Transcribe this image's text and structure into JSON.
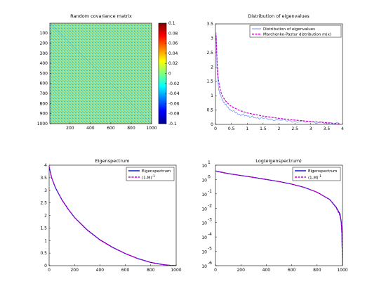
{
  "figure": {
    "background": "#ffffff"
  },
  "chart_data": [
    {
      "type": "heatmap",
      "title": "Random covariance matrix",
      "xlabel": "",
      "ylabel": "",
      "rows": 1000,
      "cols": 1000,
      "xlim": [
        1,
        1000
      ],
      "ylim": [
        1,
        1000
      ],
      "x_ticks": [
        "200",
        "400",
        "600",
        "800",
        "1000"
      ],
      "y_ticks": [
        "100",
        "200",
        "300",
        "400",
        "500",
        "600",
        "700",
        "800",
        "900",
        "1000"
      ],
      "colorbar": {
        "range": [
          -0.1,
          0.1
        ],
        "ticks": [
          "0.1",
          "0.08",
          "0.06",
          "0.04",
          "0.02",
          "0",
          "-0.02",
          "-0.04",
          "-0.06",
          "-0.08",
          "-0.1"
        ]
      }
    },
    {
      "type": "line",
      "title": "Distribution of eigenvalues",
      "xlim": [
        0,
        4
      ],
      "ylim": [
        0,
        3.5
      ],
      "x_ticks": [
        "0",
        "0.5",
        "1",
        "1.5",
        "2",
        "2.5",
        "3",
        "3.5",
        "4"
      ],
      "y_ticks": [
        "0",
        "0.5",
        "1",
        "1.5",
        "2",
        "2.5",
        "3",
        "3.5"
      ],
      "legend": "top-right",
      "series": [
        {
          "name": "Distribution of eigenvalues",
          "style": "histogram-steps",
          "color": "#6b8cff",
          "x": [
            0.02,
            0.05,
            0.1,
            0.2,
            0.3,
            0.5,
            0.75,
            1.0,
            1.25,
            1.5,
            2.0,
            2.5,
            3.0,
            3.5,
            3.9
          ],
          "y": [
            3.2,
            1.9,
            1.2,
            0.9,
            0.7,
            0.48,
            0.36,
            0.29,
            0.24,
            0.2,
            0.15,
            0.11,
            0.08,
            0.05,
            0.03
          ]
        },
        {
          "name": "Marchenko-Pastur distribution m(x)",
          "style": "dashed",
          "color": "#cc00cc",
          "x": [
            0.02,
            0.04,
            0.06,
            0.08,
            0.1,
            0.15,
            0.2,
            0.3,
            0.4,
            0.5,
            0.75,
            1.0,
            1.5,
            2.0,
            2.5,
            3.0,
            3.5,
            3.8,
            3.95
          ],
          "y": [
            3.1,
            2.5,
            2.0,
            1.7,
            1.5,
            1.2,
            1.03,
            0.84,
            0.72,
            0.63,
            0.49,
            0.4,
            0.29,
            0.21,
            0.15,
            0.1,
            0.06,
            0.03,
            0.01
          ]
        }
      ]
    },
    {
      "type": "line",
      "title": "Eigenspectrum",
      "xlim": [
        0,
        1000
      ],
      "ylim": [
        0,
        4
      ],
      "x_ticks": [
        "0",
        "200",
        "400",
        "600",
        "800",
        "1000"
      ],
      "y_ticks": [
        "0",
        "0.5",
        "1",
        "1.5",
        "2",
        "2.5",
        "3",
        "3.5",
        "4"
      ],
      "legend": "top-right",
      "series": [
        {
          "name": "Eigenspectrum",
          "style": "solid",
          "color": "#0000cc",
          "x": [
            1,
            20,
            50,
            100,
            150,
            200,
            300,
            400,
            500,
            600,
            700,
            800,
            900,
            950,
            1000
          ],
          "y": [
            3.9,
            3.5,
            3.1,
            2.63,
            2.25,
            1.92,
            1.42,
            1.03,
            0.73,
            0.48,
            0.28,
            0.13,
            0.04,
            0.015,
            0.002
          ]
        },
        {
          "name": "(1-M)",
          "name_superscript": "-1",
          "style": "dashed",
          "color": "#cc00cc",
          "x": [
            1,
            20,
            50,
            100,
            150,
            200,
            300,
            400,
            500,
            600,
            700,
            800,
            900,
            950,
            1000
          ],
          "y": [
            3.95,
            3.5,
            3.1,
            2.62,
            2.24,
            1.91,
            1.41,
            1.02,
            0.72,
            0.48,
            0.28,
            0.13,
            0.04,
            0.015,
            0.002
          ]
        }
      ]
    },
    {
      "type": "line",
      "title": "Log(eigenspectrum)",
      "xlim": [
        0,
        1000
      ],
      "ylim": [
        -6,
        1
      ],
      "y_scale": "log",
      "x_ticks": [
        "0",
        "200",
        "400",
        "600",
        "800",
        "1000"
      ],
      "y_ticks": [
        {
          "base": "10",
          "exp": "1"
        },
        {
          "base": "10",
          "exp": "0"
        },
        {
          "base": "10",
          "exp": "-1"
        },
        {
          "base": "10",
          "exp": "-2"
        },
        {
          "base": "10",
          "exp": "-3"
        },
        {
          "base": "10",
          "exp": "-4"
        },
        {
          "base": "10",
          "exp": "-5"
        },
        {
          "base": "10",
          "exp": "-6"
        }
      ],
      "legend": "top-right",
      "series": [
        {
          "name": "Eigenspectrum",
          "style": "solid",
          "color": "#0000cc",
          "x": [
            1,
            100,
            200,
            300,
            400,
            500,
            600,
            700,
            800,
            900,
            950,
            980,
            990,
            995,
            1000
          ],
          "y": [
            3.9,
            2.6,
            1.9,
            1.4,
            1.0,
            0.72,
            0.48,
            0.28,
            0.13,
            0.04,
            0.012,
            0.004,
            0.0012,
            0.0002,
            1e-06
          ]
        },
        {
          "name": "(1-M)",
          "name_superscript": "-1",
          "style": "dashed",
          "color": "#cc00cc",
          "x": [
            1,
            100,
            200,
            300,
            400,
            500,
            600,
            700,
            800,
            900,
            950,
            980,
            990,
            995,
            1000
          ],
          "y": [
            3.95,
            2.62,
            1.91,
            1.41,
            1.02,
            0.72,
            0.48,
            0.28,
            0.13,
            0.04,
            0.011,
            0.003,
            0.001,
            0.00018,
            2e-06
          ]
        }
      ]
    }
  ]
}
